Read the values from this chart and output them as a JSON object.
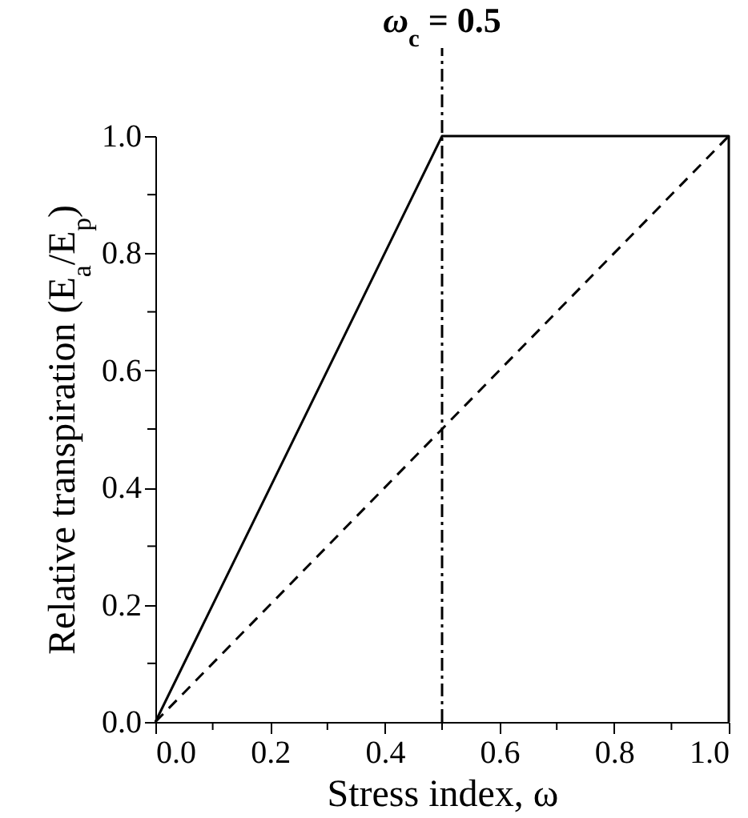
{
  "chart_data": {
    "type": "line",
    "xlabel": "Stress index, ω",
    "ylabel": "Relative transpiration (E$_{a}$/E$_{p}$)",
    "xlim": [
      0,
      1
    ],
    "ylim": [
      0,
      1
    ],
    "xticks": [
      {
        "value": 0,
        "label": "0.0"
      },
      {
        "value": 0.1,
        "label": null
      },
      {
        "value": 0.2,
        "label": "0.2"
      },
      {
        "value": 0.3,
        "label": null
      },
      {
        "value": 0.4,
        "label": "0.4"
      },
      {
        "value": 0.5,
        "label": null
      },
      {
        "value": 0.6,
        "label": "0.6"
      },
      {
        "value": 0.7,
        "label": null
      },
      {
        "value": 0.8,
        "label": "0.8"
      },
      {
        "value": 0.9,
        "label": null
      },
      {
        "value": 1,
        "label": "1.0"
      }
    ],
    "yticks": [
      {
        "value": 0,
        "label": "0.0"
      },
      {
        "value": 0.1,
        "label": null
      },
      {
        "value": 0.2,
        "label": "0.2"
      },
      {
        "value": 0.3,
        "label": null
      },
      {
        "value": 0.4,
        "label": "0.4"
      },
      {
        "value": 0.5,
        "label": null
      },
      {
        "value": 0.6,
        "label": "0.6"
      },
      {
        "value": 0.7,
        "label": null
      },
      {
        "value": 0.8,
        "label": "0.8"
      },
      {
        "value": 0.9,
        "label": null
      },
      {
        "value": 1,
        "label": "1.0"
      }
    ],
    "series": [
      {
        "color": "#000000",
        "x": [
          0,
          0.5,
          1,
          1
        ],
        "values": [
          0,
          1,
          1,
          0
        ],
        "line_style": "solid"
      },
      {
        "color": "#000000",
        "x": [
          0,
          1
        ],
        "values": [
          0,
          1
        ],
        "line_style": "dashed"
      }
    ],
    "ref_lines": [
      {
        "axis": "x",
        "value": 0.5,
        "label": "ω$_{c}$ = 0.5",
        "color": "#000000",
        "line_style": "dashdot"
      }
    ],
    "grid": false,
    "marker": "none"
  }
}
